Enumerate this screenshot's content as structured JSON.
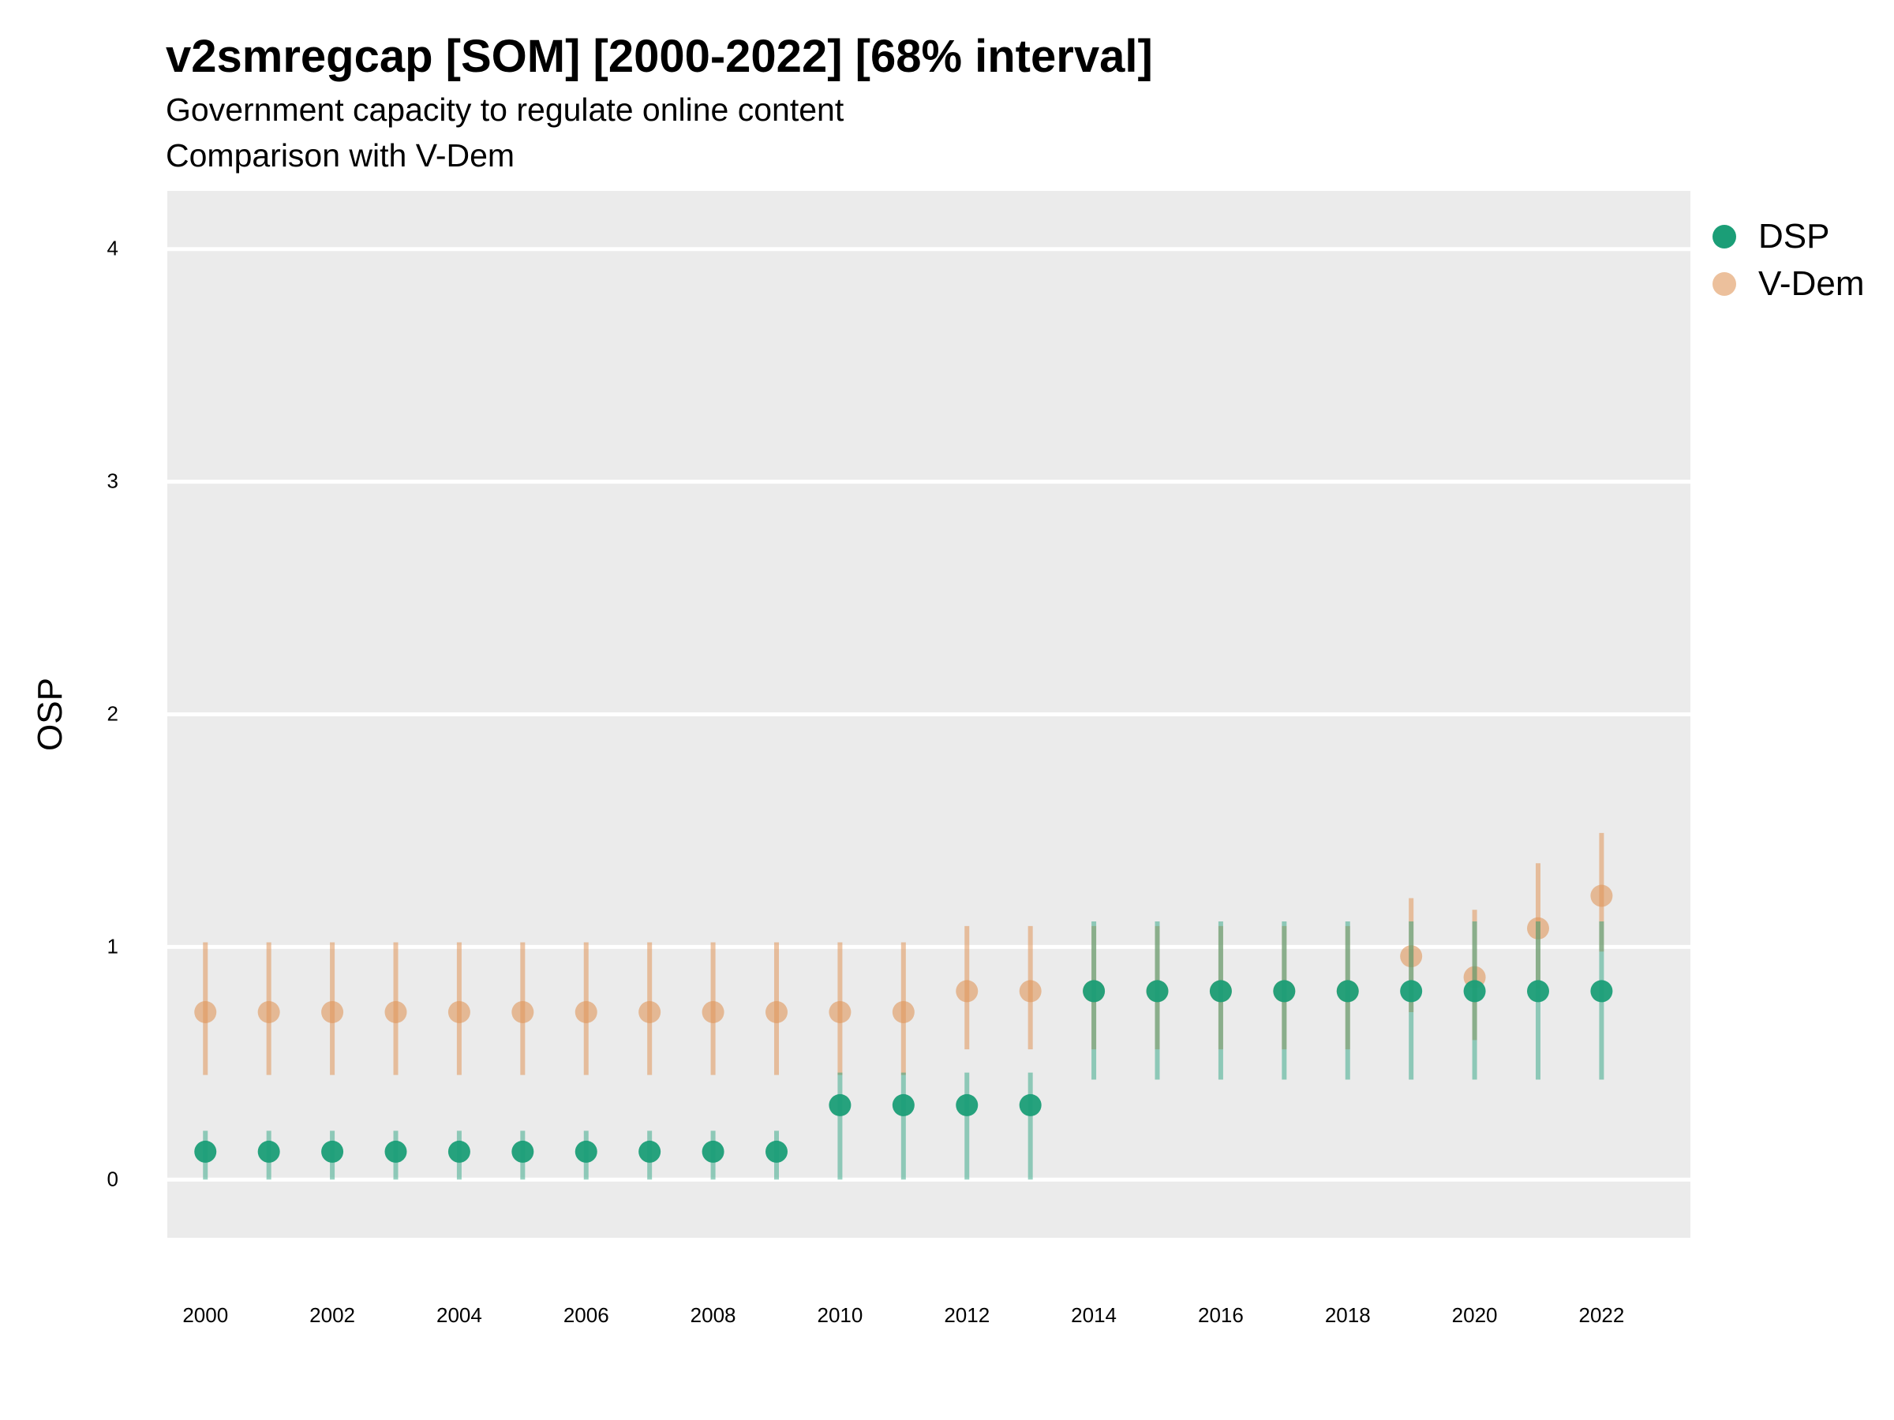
{
  "colors": {
    "dsp": "#1b9e77",
    "vdem": "#e0965a",
    "panel_bg": "#ebebeb",
    "grid": "#ffffff"
  },
  "chart_data": {
    "type": "scatter",
    "title": "v2smregcap [SOM] [2000-2022] [68% interval]",
    "subtitle_lines": [
      "Government capacity to regulate online content",
      "Comparison with V-Dem"
    ],
    "xlabel": "",
    "ylabel": "OSP",
    "x_ticks": [
      "2000",
      "2002",
      "2004",
      "2006",
      "2008",
      "2010",
      "2012",
      "2014",
      "2016",
      "2018",
      "2020",
      "2022"
    ],
    "y_ticks": [
      "0",
      "1",
      "2",
      "3",
      "4"
    ],
    "xlim": [
      1999.4,
      2023.4
    ],
    "ylim": [
      -0.25,
      4.25
    ],
    "grid": true,
    "legend_position": "right",
    "series": [
      {
        "name": "DSP",
        "color": "#1b9e77",
        "x": [
          2000,
          2001,
          2002,
          2003,
          2004,
          2005,
          2006,
          2007,
          2008,
          2009,
          2010,
          2011,
          2012,
          2013,
          2014,
          2015,
          2016,
          2017,
          2018,
          2019,
          2020,
          2021,
          2022
        ],
        "y": [
          0.12,
          0.12,
          0.12,
          0.12,
          0.12,
          0.12,
          0.12,
          0.12,
          0.12,
          0.12,
          0.32,
          0.32,
          0.32,
          0.32,
          0.81,
          0.81,
          0.81,
          0.81,
          0.81,
          0.81,
          0.81,
          0.81,
          0.81
        ],
        "lower": [
          0.0,
          0.0,
          0.0,
          0.0,
          0.0,
          0.0,
          0.0,
          0.0,
          0.0,
          0.0,
          0.0,
          0.0,
          0.0,
          0.0,
          0.43,
          0.43,
          0.43,
          0.43,
          0.43,
          0.43,
          0.43,
          0.43,
          0.43
        ],
        "upper": [
          0.21,
          0.21,
          0.21,
          0.21,
          0.21,
          0.21,
          0.21,
          0.21,
          0.21,
          0.21,
          0.46,
          0.46,
          0.46,
          0.46,
          1.11,
          1.11,
          1.11,
          1.11,
          1.11,
          1.11,
          1.11,
          1.11,
          1.11
        ]
      },
      {
        "name": "V-Dem",
        "color": "#e0965a",
        "x": [
          2000,
          2001,
          2002,
          2003,
          2004,
          2005,
          2006,
          2007,
          2008,
          2009,
          2010,
          2011,
          2012,
          2013,
          2014,
          2015,
          2016,
          2017,
          2018,
          2019,
          2020,
          2021,
          2022
        ],
        "y": [
          0.72,
          0.72,
          0.72,
          0.72,
          0.72,
          0.72,
          0.72,
          0.72,
          0.72,
          0.72,
          0.72,
          0.72,
          0.81,
          0.81,
          0.81,
          0.81,
          0.81,
          0.81,
          0.81,
          0.96,
          0.87,
          1.08,
          1.22
        ],
        "lower": [
          0.45,
          0.45,
          0.45,
          0.45,
          0.45,
          0.45,
          0.45,
          0.45,
          0.45,
          0.45,
          0.45,
          0.45,
          0.56,
          0.56,
          0.56,
          0.56,
          0.56,
          0.56,
          0.56,
          0.72,
          0.6,
          0.82,
          0.98
        ],
        "upper": [
          1.02,
          1.02,
          1.02,
          1.02,
          1.02,
          1.02,
          1.02,
          1.02,
          1.02,
          1.02,
          1.02,
          1.02,
          1.09,
          1.09,
          1.09,
          1.09,
          1.09,
          1.09,
          1.09,
          1.21,
          1.16,
          1.36,
          1.49
        ]
      }
    ]
  }
}
